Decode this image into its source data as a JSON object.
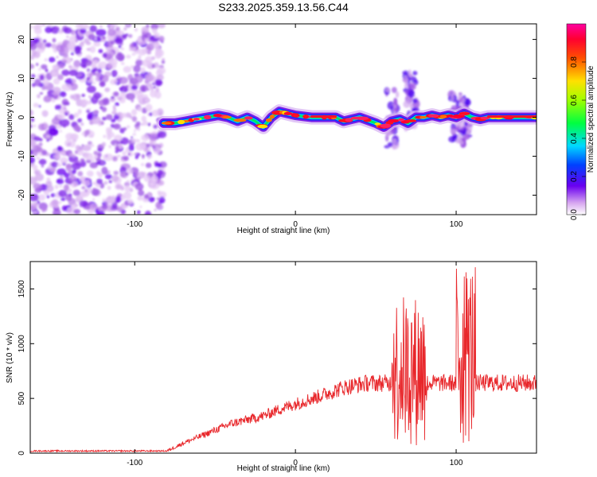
{
  "title": "S233.2025.359.13.56.C44",
  "chart_data": [
    {
      "type": "heatmap",
      "xlabel": "Height of straight line (km)",
      "ylabel": "Frequency (Hz)",
      "xlim": [
        -165,
        150
      ],
      "ylim": [
        -25,
        24
      ],
      "xticks": [
        -100,
        0,
        100
      ],
      "yticks": [
        -20,
        -10,
        0,
        10,
        20
      ],
      "colorbar": {
        "label": "Normalized spectral amplitude",
        "range": [
          0,
          1
        ],
        "ticks": [
          0.0,
          0.2,
          0.4,
          0.6,
          0.8
        ]
      },
      "noise_region": {
        "x_range": [
          -165,
          -82
        ],
        "freq_range": [
          -25,
          24
        ]
      },
      "ridge": [
        {
          "x": -82,
          "f": -1.5
        },
        {
          "x": -75,
          "f": -1.5
        },
        {
          "x": -68,
          "f": -1.0
        },
        {
          "x": -62,
          "f": -0.5
        },
        {
          "x": -55,
          "f": 0.0
        },
        {
          "x": -48,
          "f": 0.5
        },
        {
          "x": -42,
          "f": 0.0
        },
        {
          "x": -36,
          "f": -1.0
        },
        {
          "x": -30,
          "f": 0.0
        },
        {
          "x": -25,
          "f": -1.0
        },
        {
          "x": -20,
          "f": -2.5
        },
        {
          "x": -15,
          "f": 0.0
        },
        {
          "x": -10,
          "f": 1.5
        },
        {
          "x": -5,
          "f": 1.0
        },
        {
          "x": 0,
          "f": 0.5
        },
        {
          "x": 10,
          "f": 0.0
        },
        {
          "x": 25,
          "f": 0.0
        },
        {
          "x": 30,
          "f": -1.0
        },
        {
          "x": 40,
          "f": 0.0
        },
        {
          "x": 50,
          "f": -1.5
        },
        {
          "x": 55,
          "f": -2.5
        },
        {
          "x": 60,
          "f": -1.0
        },
        {
          "x": 65,
          "f": -0.5
        },
        {
          "x": 70,
          "f": -1.5
        },
        {
          "x": 75,
          "f": 0.0
        },
        {
          "x": 80,
          "f": 0.0
        },
        {
          "x": 85,
          "f": 0.5
        },
        {
          "x": 90,
          "f": 0.0
        },
        {
          "x": 95,
          "f": 0.5
        },
        {
          "x": 100,
          "f": 0.0
        },
        {
          "x": 105,
          "f": 1.0
        },
        {
          "x": 110,
          "f": 0.0
        },
        {
          "x": 115,
          "f": -0.5
        },
        {
          "x": 120,
          "f": 0.0
        },
        {
          "x": 130,
          "f": 0.0
        },
        {
          "x": 140,
          "f": 0.0
        },
        {
          "x": 150,
          "f": 0.0
        }
      ],
      "scatter_zones": [
        {
          "x": 60,
          "f_range": [
            -8,
            8
          ]
        },
        {
          "x": 72,
          "f_range": [
            -3,
            12
          ]
        },
        {
          "x": 100,
          "f_range": [
            -6,
            6
          ]
        },
        {
          "x": 105,
          "f_range": [
            -7,
            5
          ]
        }
      ]
    },
    {
      "type": "line",
      "xlabel": "Height of straight line (km)",
      "ylabel": "SNR (10 * v/v)",
      "xlim": [
        -165,
        150
      ],
      "ylim": [
        0,
        1750
      ],
      "xticks": [
        -100,
        0,
        100
      ],
      "yticks": [
        0,
        500,
        1000,
        1500
      ],
      "color": "#e8262a",
      "profile": [
        {
          "x": -165,
          "y": 20
        },
        {
          "x": -80,
          "y": 20
        },
        {
          "x": -70,
          "y": 90
        },
        {
          "x": -55,
          "y": 180
        },
        {
          "x": -40,
          "y": 270
        },
        {
          "x": -20,
          "y": 340
        },
        {
          "x": -10,
          "y": 400
        },
        {
          "x": 0,
          "y": 450
        },
        {
          "x": 15,
          "y": 520
        },
        {
          "x": 30,
          "y": 600
        },
        {
          "x": 45,
          "y": 640
        },
        {
          "x": 55,
          "y": 640
        },
        {
          "x": 150,
          "y": 640
        }
      ],
      "bursts": [
        {
          "x_range": [
            60,
            82
          ],
          "max": 1450,
          "min": 50
        },
        {
          "x_range": [
            100,
            112
          ],
          "max": 1750,
          "min": 50
        }
      ]
    }
  ]
}
